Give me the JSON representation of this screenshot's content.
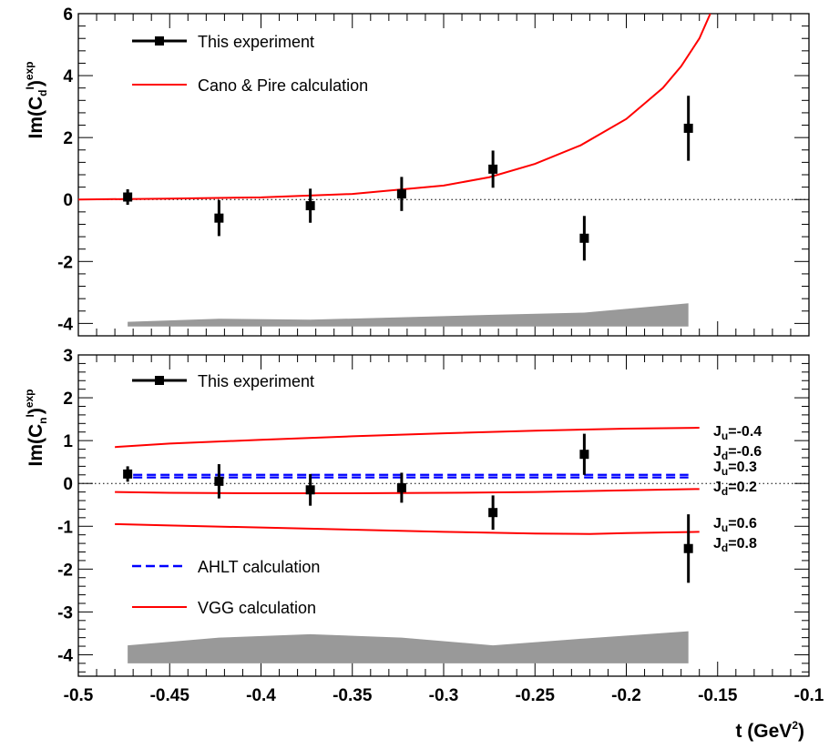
{
  "chart_data": [
    {
      "type": "line",
      "panel": "top",
      "ylabel": {
        "prefix": "Im(C",
        "sub": "d",
        "sup": "I",
        "suffix": ")",
        "sup2": "exp"
      },
      "xlim": [
        -0.5,
        -0.1
      ],
      "ylim": [
        -4.4,
        6.0
      ],
      "y_ticks": [
        -4,
        -2,
        0,
        2,
        4,
        6
      ],
      "y_tick_labels": [
        "-4",
        "-2",
        "0",
        "2",
        "4",
        "6"
      ],
      "zero_line": true,
      "legend": [
        {
          "label": "This experiment",
          "style": "marker-errorbar",
          "color": "#000000"
        },
        {
          "label": "Cano & Pire calculation",
          "style": "solid",
          "color": "#ff0000"
        }
      ],
      "data_points": [
        {
          "x": -0.473,
          "y": 0.08,
          "err": 0.25
        },
        {
          "x": -0.423,
          "y": -0.6,
          "err": 0.58
        },
        {
          "x": -0.373,
          "y": -0.2,
          "err": 0.55
        },
        {
          "x": -0.323,
          "y": 0.18,
          "err": 0.55
        },
        {
          "x": -0.273,
          "y": 0.98,
          "err": 0.6
        },
        {
          "x": -0.223,
          "y": -1.25,
          "err": 0.72
        },
        {
          "x": -0.166,
          "y": 2.3,
          "err": 1.05
        }
      ],
      "curves": [
        {
          "name": "Cano & Pire calculation",
          "color": "#ff0000",
          "dash": "solid",
          "x": [
            -0.5,
            -0.45,
            -0.4,
            -0.35,
            -0.3,
            -0.275,
            -0.25,
            -0.225,
            -0.2,
            -0.19,
            -0.18,
            -0.17,
            -0.16,
            -0.154
          ],
          "y": [
            0.0,
            0.03,
            0.07,
            0.18,
            0.45,
            0.72,
            1.15,
            1.75,
            2.6,
            3.1,
            3.6,
            4.3,
            5.2,
            6.0
          ]
        }
      ],
      "systematic_band": {
        "color": "#999999",
        "base": -4.1,
        "x": [
          -0.473,
          -0.423,
          -0.373,
          -0.323,
          -0.273,
          -0.223,
          -0.166
        ],
        "top": [
          -3.95,
          -3.85,
          -3.88,
          -3.8,
          -3.72,
          -3.65,
          -3.35
        ]
      }
    },
    {
      "type": "line",
      "panel": "bottom",
      "xlabel": {
        "main": "t (GeV",
        "sup": "2",
        "end": ")"
      },
      "ylabel": {
        "prefix": "Im(C",
        "sub": "n",
        "sup": "I",
        "suffix": ")",
        "sup2": "exp"
      },
      "xlim": [
        -0.5,
        -0.1
      ],
      "ylim": [
        -4.5,
        3.0
      ],
      "x_ticks": [
        -0.5,
        -0.45,
        -0.4,
        -0.35,
        -0.3,
        -0.25,
        -0.2,
        -0.15,
        -0.1
      ],
      "x_tick_labels": [
        "-0.5",
        "-0.45",
        "-0.4",
        "-0.35",
        "-0.3",
        "-0.25",
        "-0.2",
        "-0.15",
        "-0.1"
      ],
      "y_ticks": [
        -4,
        -3,
        -2,
        -1,
        0,
        1,
        2,
        3
      ],
      "y_tick_labels": [
        "-4",
        "-3",
        "-2",
        "-1",
        "0",
        "1",
        "2",
        "3"
      ],
      "zero_line": true,
      "legend": [
        {
          "label": "This experiment",
          "style": "marker-errorbar",
          "color": "#000000"
        },
        {
          "label": "AHLT calculation",
          "style": "dashed",
          "color": "#0000ff"
        },
        {
          "label": "VGG calculation",
          "style": "solid",
          "color": "#ff0000"
        }
      ],
      "data_points": [
        {
          "x": -0.473,
          "y": 0.22,
          "err": 0.18
        },
        {
          "x": -0.423,
          "y": 0.05,
          "err": 0.4
        },
        {
          "x": -0.373,
          "y": -0.15,
          "err": 0.37
        },
        {
          "x": -0.323,
          "y": -0.1,
          "err": 0.35
        },
        {
          "x": -0.273,
          "y": -0.68,
          "err": 0.4
        },
        {
          "x": -0.223,
          "y": 0.68,
          "err": 0.48
        },
        {
          "x": -0.166,
          "y": -1.52,
          "err": 0.8
        }
      ],
      "curves": [
        {
          "name": "VGG Ju=-0.4 Jd=-0.6",
          "color": "#ff0000",
          "dash": "solid",
          "x": [
            -0.48,
            -0.45,
            -0.4,
            -0.35,
            -0.3,
            -0.25,
            -0.2,
            -0.16
          ],
          "y": [
            0.85,
            0.93,
            1.02,
            1.1,
            1.17,
            1.23,
            1.28,
            1.3
          ]
        },
        {
          "name": "VGG Ju=0.3 Jd=0.2",
          "color": "#ff0000",
          "dash": "solid",
          "x": [
            -0.48,
            -0.45,
            -0.4,
            -0.35,
            -0.3,
            -0.25,
            -0.2,
            -0.16
          ],
          "y": [
            -0.2,
            -0.22,
            -0.23,
            -0.23,
            -0.22,
            -0.2,
            -0.16,
            -0.13
          ]
        },
        {
          "name": "VGG Ju=0.6 Jd=0.8",
          "color": "#ff0000",
          "dash": "solid",
          "x": [
            -0.48,
            -0.45,
            -0.4,
            -0.35,
            -0.3,
            -0.25,
            -0.22,
            -0.2,
            -0.16
          ],
          "y": [
            -0.95,
            -0.98,
            -1.03,
            -1.08,
            -1.13,
            -1.17,
            -1.18,
            -1.16,
            -1.13
          ]
        },
        {
          "name": "AHLT calculation 1",
          "color": "#0000ff",
          "dash": "dashed",
          "x": [
            -0.47,
            -0.166
          ],
          "y": [
            0.2,
            0.2
          ]
        },
        {
          "name": "AHLT calculation 2",
          "color": "#0000ff",
          "dash": "dashed",
          "x": [
            -0.47,
            -0.166
          ],
          "y": [
            0.14,
            0.14
          ]
        }
      ],
      "annotations": [
        {
          "id": "ann1",
          "lines": [
            {
              "pre": "J",
              "sub": "u",
              "post": "=-0.4"
            },
            {
              "pre": "J",
              "sub": "d",
              "post": "=-0.6"
            }
          ]
        },
        {
          "id": "ann2",
          "lines": [
            {
              "pre": "J",
              "sub": "u",
              "post": "=0.3"
            },
            {
              "pre": "J",
              "sub": "d",
              "post": "=0.2"
            }
          ]
        },
        {
          "id": "ann3",
          "lines": [
            {
              "pre": "J",
              "sub": "u",
              "post": "=0.6"
            },
            {
              "pre": "J",
              "sub": "d",
              "post": "=0.8"
            }
          ]
        }
      ],
      "systematic_band": {
        "color": "#999999",
        "base": -4.2,
        "x": [
          -0.473,
          -0.423,
          -0.373,
          -0.323,
          -0.273,
          -0.223,
          -0.166
        ],
        "top": [
          -3.78,
          -3.6,
          -3.52,
          -3.6,
          -3.78,
          -3.62,
          -3.45
        ]
      }
    }
  ]
}
